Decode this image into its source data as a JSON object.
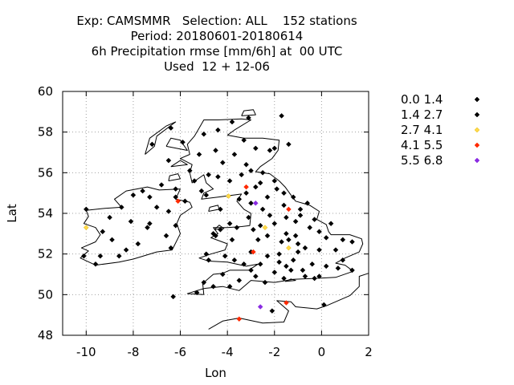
{
  "chart_data": {
    "type": "scatter",
    "title_lines": [
      "Exp: CAMSMMR   Selection: ALL    152 stations",
      "Period: 20180601-20180614",
      "6h Precipitation rmse [mm/6h] at  00 UTC",
      "Used  12 + 12-06"
    ],
    "xlabel": "Lon",
    "ylabel": "Lat",
    "xlim": [
      -11,
      2
    ],
    "ylim": [
      48,
      60
    ],
    "x_ticks": [
      -10,
      -8,
      -6,
      -4,
      -2,
      0,
      2
    ],
    "x_tick_labels": [
      "-10",
      "-8",
      "-6",
      "-4",
      "-2",
      "0",
      "2"
    ],
    "y_ticks": [
      48,
      50,
      52,
      54,
      56,
      58,
      60
    ],
    "y_tick_labels": [
      "48",
      "50",
      "52",
      "54",
      "56",
      "58",
      "60"
    ],
    "grid": true,
    "legend_position": "right",
    "series": [
      {
        "name": "0.0 1.4",
        "color": "#000000",
        "points": [
          [
            -1.7,
            58.8
          ],
          [
            -1.4,
            57.4
          ],
          [
            -3.3,
            57.6
          ],
          [
            -2.8,
            57.2
          ],
          [
            -2.2,
            57.1
          ],
          [
            -2.0,
            57.2
          ],
          [
            -3.7,
            56.9
          ],
          [
            -4.2,
            56.5
          ],
          [
            -3.2,
            56.4
          ],
          [
            -5.6,
            56.1
          ],
          [
            -4.8,
            55.9
          ],
          [
            -4.4,
            55.8
          ],
          [
            -3.4,
            55.9
          ],
          [
            -3.2,
            55.0
          ],
          [
            -2.8,
            55.3
          ],
          [
            -2.0,
            55.6
          ],
          [
            -5.1,
            55.1
          ],
          [
            -4.3,
            54.2
          ],
          [
            -3.5,
            54.7
          ],
          [
            -3.0,
            54.5
          ],
          [
            -2.3,
            54.8
          ],
          [
            -1.6,
            55.0
          ],
          [
            -1.2,
            54.8
          ],
          [
            -1.6,
            54.4
          ],
          [
            -0.9,
            54.2
          ],
          [
            -2.2,
            53.9
          ],
          [
            -1.5,
            53.8
          ],
          [
            -0.3,
            53.7
          ],
          [
            -1.1,
            53.6
          ],
          [
            -3.1,
            53.8
          ],
          [
            -2.6,
            53.4
          ],
          [
            -2.0,
            53.5
          ],
          [
            -0.5,
            53.3
          ],
          [
            -0.1,
            53.1
          ],
          [
            -1.5,
            53.0
          ],
          [
            -2.9,
            53.2
          ],
          [
            -3.6,
            53.3
          ],
          [
            -4.3,
            53.2
          ],
          [
            -4.5,
            52.9
          ],
          [
            -3.8,
            52.7
          ],
          [
            -2.7,
            52.7
          ],
          [
            -1.7,
            52.6
          ],
          [
            -1.0,
            52.5
          ],
          [
            0.2,
            52.8
          ],
          [
            0.9,
            52.7
          ],
          [
            1.3,
            52.6
          ],
          [
            0.6,
            52.2
          ],
          [
            -0.1,
            52.2
          ],
          [
            -1.0,
            52.1
          ],
          [
            -1.8,
            52.0
          ],
          [
            -3.0,
            52.1
          ],
          [
            -4.1,
            51.9
          ],
          [
            -4.8,
            51.7
          ],
          [
            -3.3,
            51.5
          ],
          [
            -2.6,
            51.5
          ],
          [
            -1.8,
            51.6
          ],
          [
            -1.2,
            51.7
          ],
          [
            -0.4,
            51.5
          ],
          [
            0.2,
            51.4
          ],
          [
            0.7,
            51.3
          ],
          [
            1.3,
            51.2
          ],
          [
            -1.3,
            51.2
          ],
          [
            -2.0,
            51.1
          ],
          [
            -3.0,
            51.2
          ],
          [
            -4.2,
            51.0
          ],
          [
            -2.4,
            50.6
          ],
          [
            -1.6,
            50.8
          ],
          [
            -0.7,
            50.9
          ],
          [
            -3.5,
            50.7
          ],
          [
            -4.6,
            50.4
          ],
          [
            -5.3,
            50.1
          ],
          [
            -6.3,
            49.9
          ],
          [
            -2.1,
            49.2
          ],
          [
            0.1,
            49.5
          ],
          [
            -6.4,
            58.2
          ],
          [
            -7.2,
            57.4
          ],
          [
            -5.0,
            57.9
          ],
          [
            -4.4,
            58.1
          ],
          [
            -5.9,
            57.5
          ],
          [
            -6.5,
            56.6
          ],
          [
            -6.2,
            54.8
          ],
          [
            -5.8,
            54.6
          ],
          [
            -7.0,
            54.3
          ],
          [
            -6.5,
            54.1
          ],
          [
            -7.3,
            54.8
          ],
          [
            -8.0,
            54.9
          ],
          [
            -7.6,
            55.1
          ],
          [
            -6.2,
            55.2
          ],
          [
            -8.5,
            54.3
          ],
          [
            -9.0,
            53.8
          ],
          [
            -8.1,
            53.6
          ],
          [
            -7.3,
            53.5
          ],
          [
            -6.2,
            53.4
          ],
          [
            -9.3,
            53.1
          ],
          [
            -8.9,
            52.7
          ],
          [
            -7.8,
            52.5
          ],
          [
            -6.6,
            52.9
          ],
          [
            -6.4,
            52.3
          ],
          [
            -8.6,
            51.9
          ],
          [
            -9.4,
            51.9
          ],
          [
            -10.1,
            51.9
          ],
          [
            -10.0,
            54.2
          ],
          [
            -6.8,
            55.4
          ],
          [
            -7.4,
            53.3
          ],
          [
            -4.5,
            57.1
          ],
          [
            -3.8,
            58.5
          ],
          [
            -3.1,
            58.7
          ],
          [
            -5.2,
            56.9
          ],
          [
            -5.4,
            55.6
          ],
          [
            -3.0,
            56.1
          ],
          [
            -2.5,
            56.0
          ],
          [
            -4.9,
            54.9
          ],
          [
            -3.9,
            55.6
          ],
          [
            -1.9,
            55.2
          ],
          [
            -0.9,
            53.9
          ],
          [
            -0.6,
            54.5
          ],
          [
            -2.5,
            54.2
          ],
          [
            -3.9,
            53.5
          ],
          [
            -2.3,
            52.9
          ],
          [
            -1.1,
            52.9
          ],
          [
            0.4,
            53.5
          ],
          [
            -0.7,
            52.3
          ],
          [
            -2.3,
            51.9
          ],
          [
            -3.7,
            51.7
          ],
          [
            -0.3,
            50.8
          ],
          [
            -1.5,
            51.4
          ],
          [
            -2.8,
            50.9
          ],
          [
            0.9,
            51.7
          ],
          [
            -4.9,
            52.0
          ],
          [
            -9.6,
            51.5
          ],
          [
            -8.3,
            52.2
          ],
          [
            -5.0,
            50.6
          ],
          [
            -3.9,
            50.4
          ],
          [
            -0.1,
            50.9
          ],
          [
            -2.6,
            55.5
          ],
          [
            -1.4,
            52.7
          ],
          [
            -4.6,
            53.0
          ],
          [
            -0.8,
            51.2
          ]
        ]
      },
      {
        "name": "1.4 2.7",
        "color": "#000000",
        "points": []
      },
      {
        "name": "2.7 4.1",
        "color": "#ffd84a",
        "points": [
          [
            -10.0,
            53.3
          ],
          [
            -3.95,
            54.85
          ],
          [
            -2.4,
            53.3
          ],
          [
            -1.4,
            52.3
          ]
        ]
      },
      {
        "name": "4.1 5.5",
        "color": "#ff2a00",
        "points": [
          [
            -6.1,
            54.6
          ],
          [
            -3.2,
            55.3
          ],
          [
            -2.9,
            52.1
          ],
          [
            -1.4,
            54.2
          ],
          [
            -1.5,
            49.6
          ],
          [
            -3.5,
            48.8
          ]
        ]
      },
      {
        "name": "5.5 6.8",
        "color": "#8a2be2",
        "points": [
          [
            -2.8,
            54.5
          ],
          [
            -2.6,
            49.4
          ]
        ]
      }
    ]
  }
}
